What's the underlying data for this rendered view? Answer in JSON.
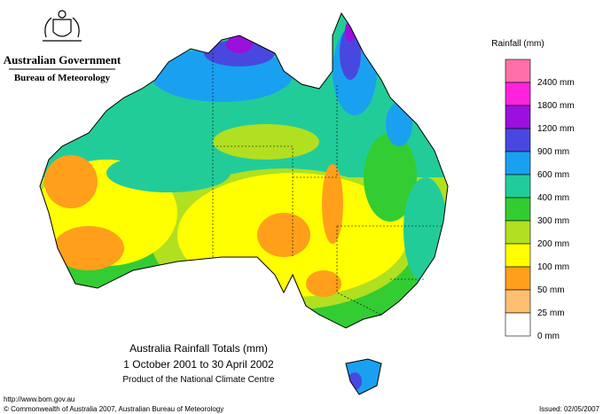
{
  "header": {
    "agency": "Australian Government",
    "bureau": "Bureau of Meteorology"
  },
  "legend": {
    "title": "Rainfall (mm)",
    "items": [
      {
        "label": "2400 mm",
        "color": "#ff6fa8"
      },
      {
        "label": "1800 mm",
        "color": "#ff22dd"
      },
      {
        "label": "1200 mm",
        "color": "#9a10dd"
      },
      {
        "label": "900 mm",
        "color": "#4848e0"
      },
      {
        "label": "600 mm",
        "color": "#1aa0f0"
      },
      {
        "label": "400 mm",
        "color": "#22cc99"
      },
      {
        "label": "300 mm",
        "color": "#33cc33"
      },
      {
        "label": "200 mm",
        "color": "#b0e020"
      },
      {
        "label": "100 mm",
        "color": "#ffff00"
      },
      {
        "label": "50 mm",
        "color": "#ff9f1a"
      },
      {
        "label": "25 mm",
        "color": "#ffbf70"
      },
      {
        "label": "0 mm",
        "color": "#ffffff"
      }
    ]
  },
  "map_title": {
    "line1": "Australia Rainfall Totals (mm)",
    "line2": "1 October 2001 to 30 April 2002",
    "line3": "Product of the National Climate Centre"
  },
  "footer": {
    "url": "http://www.bom.gov.au",
    "copyright": "© Commonwealth of Australia 2007, Australian Bureau of Meteorology",
    "issued": "Issued: 02/05/2007"
  }
}
